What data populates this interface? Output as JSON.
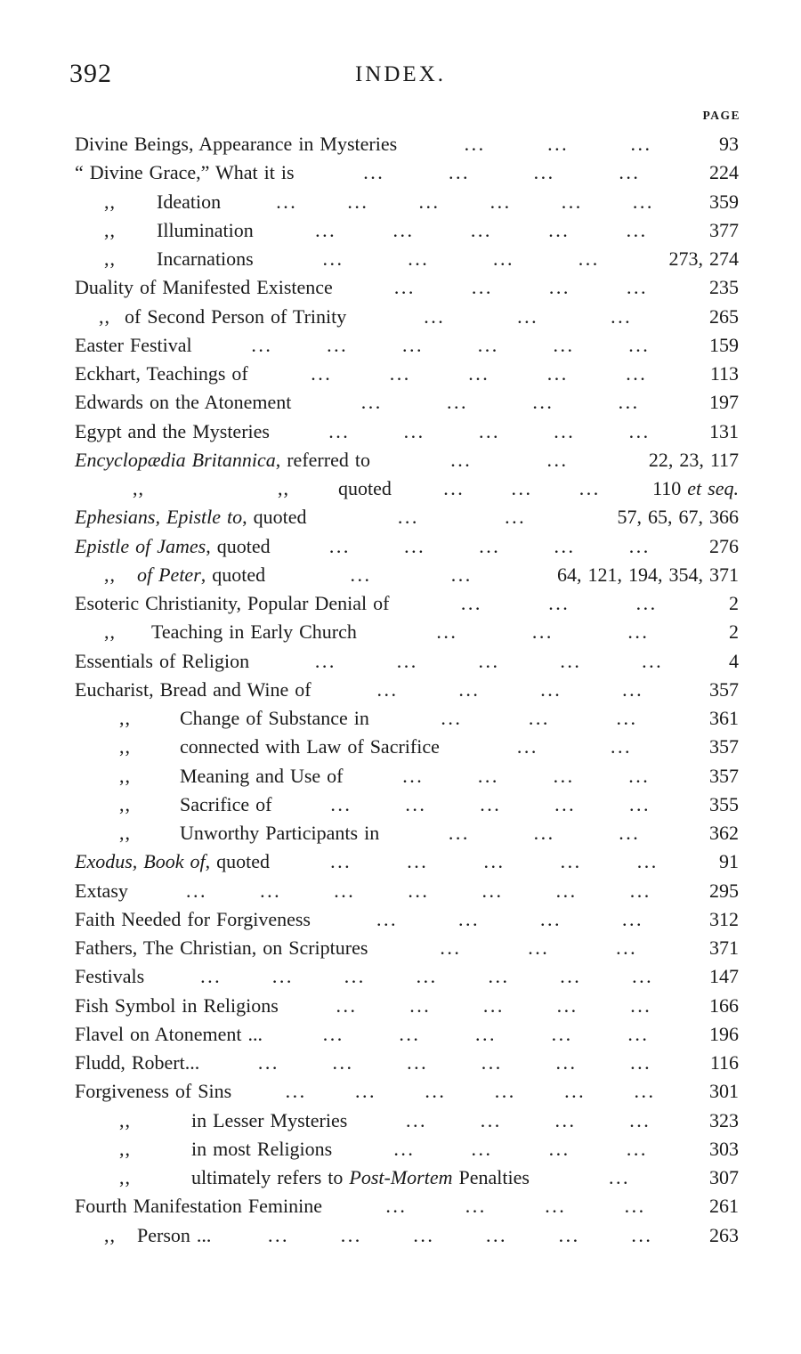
{
  "page_header": {
    "page_number": "392",
    "title": "INDEX.",
    "column_label": "PAGE"
  },
  "colors": {
    "ink": "#1a1a1a",
    "paper": "#ffffff"
  },
  "index_rows": [
    {
      "segments": [
        {
          "t": "Divine Beings, Appearance in Mysteries"
        }
      ],
      "dots": 3,
      "page": [
        {
          "t": "93"
        }
      ]
    },
    {
      "segments": [
        {
          "t": "“ Divine Grace,” What it is"
        }
      ],
      "dots": 4,
      "page": [
        {
          "t": "224"
        }
      ]
    },
    {
      "segments": [
        {
          "t": ",,",
          "d": true,
          "ml": 33
        },
        {
          "t": "Ideation",
          "ml": 46
        }
      ],
      "dots": 6,
      "page": [
        {
          "t": "359"
        }
      ]
    },
    {
      "segments": [
        {
          "t": ",,",
          "d": true,
          "ml": 33
        },
        {
          "t": "Illumination",
          "ml": 46
        }
      ],
      "dots": 5,
      "page": [
        {
          "t": "377"
        }
      ]
    },
    {
      "segments": [
        {
          "t": ",,",
          "d": true,
          "ml": 33
        },
        {
          "t": "Incarnations",
          "ml": 46
        }
      ],
      "dots": 4,
      "page": [
        {
          "t": "273, 274"
        }
      ]
    },
    {
      "segments": [
        {
          "t": "Duality of Manifested Existence"
        }
      ],
      "dots": 4,
      "page": [
        {
          "t": "235"
        }
      ]
    },
    {
      "segments": [
        {
          "t": ",,",
          "d": true,
          "ml": 27
        },
        {
          "t": "of Second Person of Trinity",
          "ml": 16
        }
      ],
      "dots": 3,
      "page": [
        {
          "t": "265"
        }
      ]
    },
    {
      "segments": [
        {
          "t": "Easter Festival"
        }
      ],
      "dots": 6,
      "page": [
        {
          "t": "159"
        }
      ]
    },
    {
      "segments": [
        {
          "t": "Eckhart, Teachings of"
        }
      ],
      "dots": 5,
      "page": [
        {
          "t": "113"
        }
      ]
    },
    {
      "segments": [
        {
          "t": "Edwards on the Atonement"
        }
      ],
      "dots": 4,
      "page": [
        {
          "t": "197"
        }
      ]
    },
    {
      "segments": [
        {
          "t": "Egypt and the Mysteries"
        }
      ],
      "dots": 5,
      "page": [
        {
          "t": "131"
        }
      ]
    },
    {
      "segments": [
        {
          "t": "Encyclopædia Britannica",
          "i": true
        },
        {
          "t": ", referred to"
        }
      ],
      "dots": 2,
      "page": [
        {
          "t": "22, 23, 117"
        }
      ]
    },
    {
      "segments": [
        {
          "t": ",,",
          "d": true,
          "ml": 65
        },
        {
          "t": ",,",
          "d": true,
          "ml": 150
        },
        {
          "t": "quoted",
          "ml": 55
        }
      ],
      "dots": 3,
      "page": [
        {
          "t": "110 "
        },
        {
          "t": "et seq.",
          "i": true
        }
      ]
    },
    {
      "segments": [
        {
          "t": "Ephesians, Epistle to",
          "i": true
        },
        {
          "t": ", quoted"
        }
      ],
      "dots": 2,
      "page": [
        {
          "t": "57, 65, 67, 366"
        }
      ]
    },
    {
      "segments": [
        {
          "t": "Epistle of James",
          "i": true
        },
        {
          "t": ", quoted"
        }
      ],
      "dots": 5,
      "page": [
        {
          "t": "276"
        }
      ]
    },
    {
      "segments": [
        {
          "t": ",,",
          "d": true,
          "ml": 33
        },
        {
          "t": "of Peter",
          "i": true,
          "ml": 24
        },
        {
          "t": ", quoted"
        }
      ],
      "dots": 2,
      "page": [
        {
          "t": "64, 121, 194, 354, 371"
        }
      ]
    },
    {
      "segments": [
        {
          "t": "Esoteric Christianity, Popular Denial of"
        }
      ],
      "dots": 3,
      "page": [
        {
          "t": "2"
        }
      ]
    },
    {
      "segments": [
        {
          "t": ",,",
          "d": true,
          "ml": 33
        },
        {
          "t": "Teaching in Early Church",
          "ml": 40
        }
      ],
      "dots": 3,
      "page": [
        {
          "t": "2"
        }
      ]
    },
    {
      "segments": [
        {
          "t": "Essentials of Religion"
        }
      ],
      "dots": 5,
      "page": [
        {
          "t": "4"
        }
      ]
    },
    {
      "segments": [
        {
          "t": "Eucharist, Bread and Wine of"
        }
      ],
      "dots": 4,
      "page": [
        {
          "t": "357"
        }
      ]
    },
    {
      "segments": [
        {
          "t": ",,",
          "d": true,
          "ml": 50
        },
        {
          "t": "Change of Substance in",
          "ml": 55
        }
      ],
      "dots": 3,
      "page": [
        {
          "t": "361"
        }
      ]
    },
    {
      "segments": [
        {
          "t": ",,",
          "d": true,
          "ml": 50
        },
        {
          "t": "connected with Law of Sacrifice",
          "ml": 55
        }
      ],
      "dots": 2,
      "page": [
        {
          "t": "357"
        }
      ]
    },
    {
      "segments": [
        {
          "t": ",,",
          "d": true,
          "ml": 50
        },
        {
          "t": "Meaning and Use of",
          "ml": 55
        }
      ],
      "dots": 4,
      "page": [
        {
          "t": "357"
        }
      ]
    },
    {
      "segments": [
        {
          "t": ",,",
          "d": true,
          "ml": 50
        },
        {
          "t": "Sacrifice of",
          "ml": 55
        }
      ],
      "dots": 5,
      "page": [
        {
          "t": "355"
        }
      ]
    },
    {
      "segments": [
        {
          "t": ",,",
          "d": true,
          "ml": 50
        },
        {
          "t": "Unworthy Participants in",
          "ml": 55
        }
      ],
      "dots": 3,
      "page": [
        {
          "t": "362"
        }
      ]
    },
    {
      "segments": [
        {
          "t": "Exodus, Book of",
          "i": true
        },
        {
          "t": ", quoted"
        }
      ],
      "dots": 5,
      "page": [
        {
          "t": "91"
        }
      ]
    },
    {
      "segments": [
        {
          "t": "Extasy"
        }
      ],
      "dots": 7,
      "page": [
        {
          "t": "295"
        }
      ]
    },
    {
      "segments": [
        {
          "t": "Faith Needed for Forgiveness"
        }
      ],
      "dots": 4,
      "page": [
        {
          "t": "312"
        }
      ]
    },
    {
      "segments": [
        {
          "t": "Fathers, The Christian, on Scriptures"
        }
      ],
      "dots": 3,
      "page": [
        {
          "t": "371"
        }
      ]
    },
    {
      "segments": [
        {
          "t": "Festivals"
        }
      ],
      "dots": 7,
      "page": [
        {
          "t": "147"
        }
      ]
    },
    {
      "segments": [
        {
          "t": "Fish Symbol in Religions"
        }
      ],
      "dots": 5,
      "page": [
        {
          "t": "166"
        }
      ]
    },
    {
      "segments": [
        {
          "t": "Flavel on Atonement ..."
        }
      ],
      "dots": 5,
      "page": [
        {
          "t": "196"
        }
      ]
    },
    {
      "segments": [
        {
          "t": "Fludd, Robert..."
        }
      ],
      "dots": 6,
      "page": [
        {
          "t": "116"
        }
      ]
    },
    {
      "segments": [
        {
          "t": "Forgiveness of Sins"
        }
      ],
      "dots": 6,
      "page": [
        {
          "t": "301"
        }
      ]
    },
    {
      "segments": [
        {
          "t": ",,",
          "d": true,
          "ml": 50
        },
        {
          "t": "in Lesser Mysteries",
          "ml": 68
        }
      ],
      "dots": 4,
      "page": [
        {
          "t": "323"
        }
      ]
    },
    {
      "segments": [
        {
          "t": ",,",
          "d": true,
          "ml": 50
        },
        {
          "t": "in most Religions",
          "ml": 68
        }
      ],
      "dots": 4,
      "page": [
        {
          "t": "303"
        }
      ]
    },
    {
      "segments": [
        {
          "t": ",,",
          "d": true,
          "ml": 50
        },
        {
          "t": "ultimately refers to ",
          "ml": 68
        },
        {
          "t": "Post-Mortem",
          "i": true
        },
        {
          "t": " Penalties"
        }
      ],
      "dots": 1,
      "page": [
        {
          "t": "307"
        }
      ]
    },
    {
      "segments": [
        {
          "t": "Fourth Manifestation Feminine"
        }
      ],
      "dots": 4,
      "page": [
        {
          "t": "261"
        }
      ]
    },
    {
      "segments": [
        {
          "t": ",,",
          "d": true,
          "ml": 33
        },
        {
          "t": "Person ...",
          "ml": 24
        }
      ],
      "dots": 6,
      "page": [
        {
          "t": "263"
        }
      ]
    }
  ]
}
